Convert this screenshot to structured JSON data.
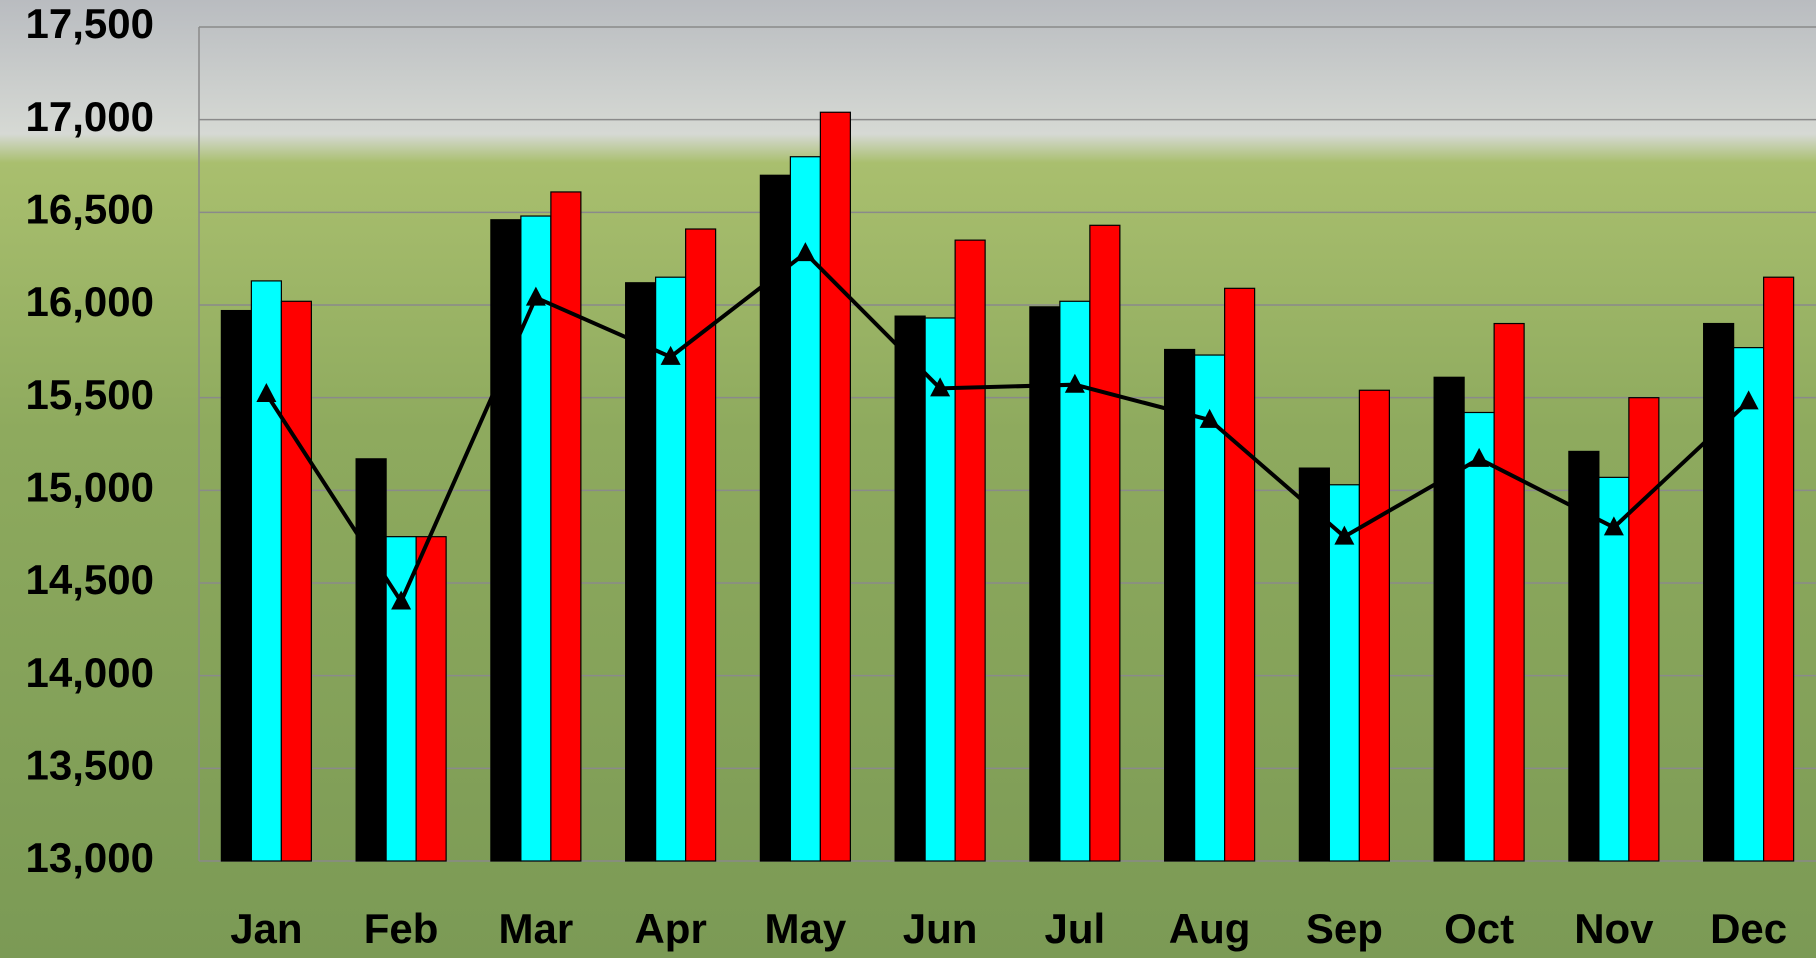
{
  "chart_data": {
    "type": "bar",
    "categories": [
      "Jan",
      "Feb",
      "Mar",
      "Apr",
      "May",
      "Jun",
      "Jul",
      "Aug",
      "Sep",
      "Oct",
      "Nov",
      "Dec"
    ],
    "series": [
      {
        "color": "#000000",
        "values": [
          15970,
          15170,
          16460,
          16120,
          16700,
          15940,
          15990,
          15760,
          15120,
          15610,
          15210,
          15900
        ]
      },
      {
        "color": "#00ffff",
        "values": [
          16130,
          14750,
          16480,
          16150,
          16800,
          15930,
          16020,
          15730,
          15030,
          15420,
          15070,
          15770
        ]
      },
      {
        "color": "#ff0000",
        "values": [
          16020,
          14750,
          16610,
          16410,
          17040,
          16350,
          16430,
          16090,
          15540,
          15900,
          15500,
          16150
        ]
      },
      {
        "type": "line",
        "color": "#000000",
        "values": [
          15520,
          14400,
          16040,
          15720,
          16280,
          15550,
          15570,
          15380,
          14750,
          15170,
          14800,
          15480
        ]
      }
    ],
    "ylim": [
      13000,
      17500
    ],
    "yticks": [
      {
        "value": 13000,
        "label": "13,000"
      },
      {
        "value": 13500,
        "label": "13,500"
      },
      {
        "value": 14000,
        "label": "14,000"
      },
      {
        "value": 14500,
        "label": "14,500"
      },
      {
        "value": 15000,
        "label": "15,000"
      },
      {
        "value": 15500,
        "label": "15,500"
      },
      {
        "value": 16000,
        "label": "16,000"
      },
      {
        "value": 16500,
        "label": "16,500"
      },
      {
        "value": 17000,
        "label": "17,000"
      },
      {
        "value": 17500,
        "label": "17,500"
      }
    ],
    "grid": true
  }
}
